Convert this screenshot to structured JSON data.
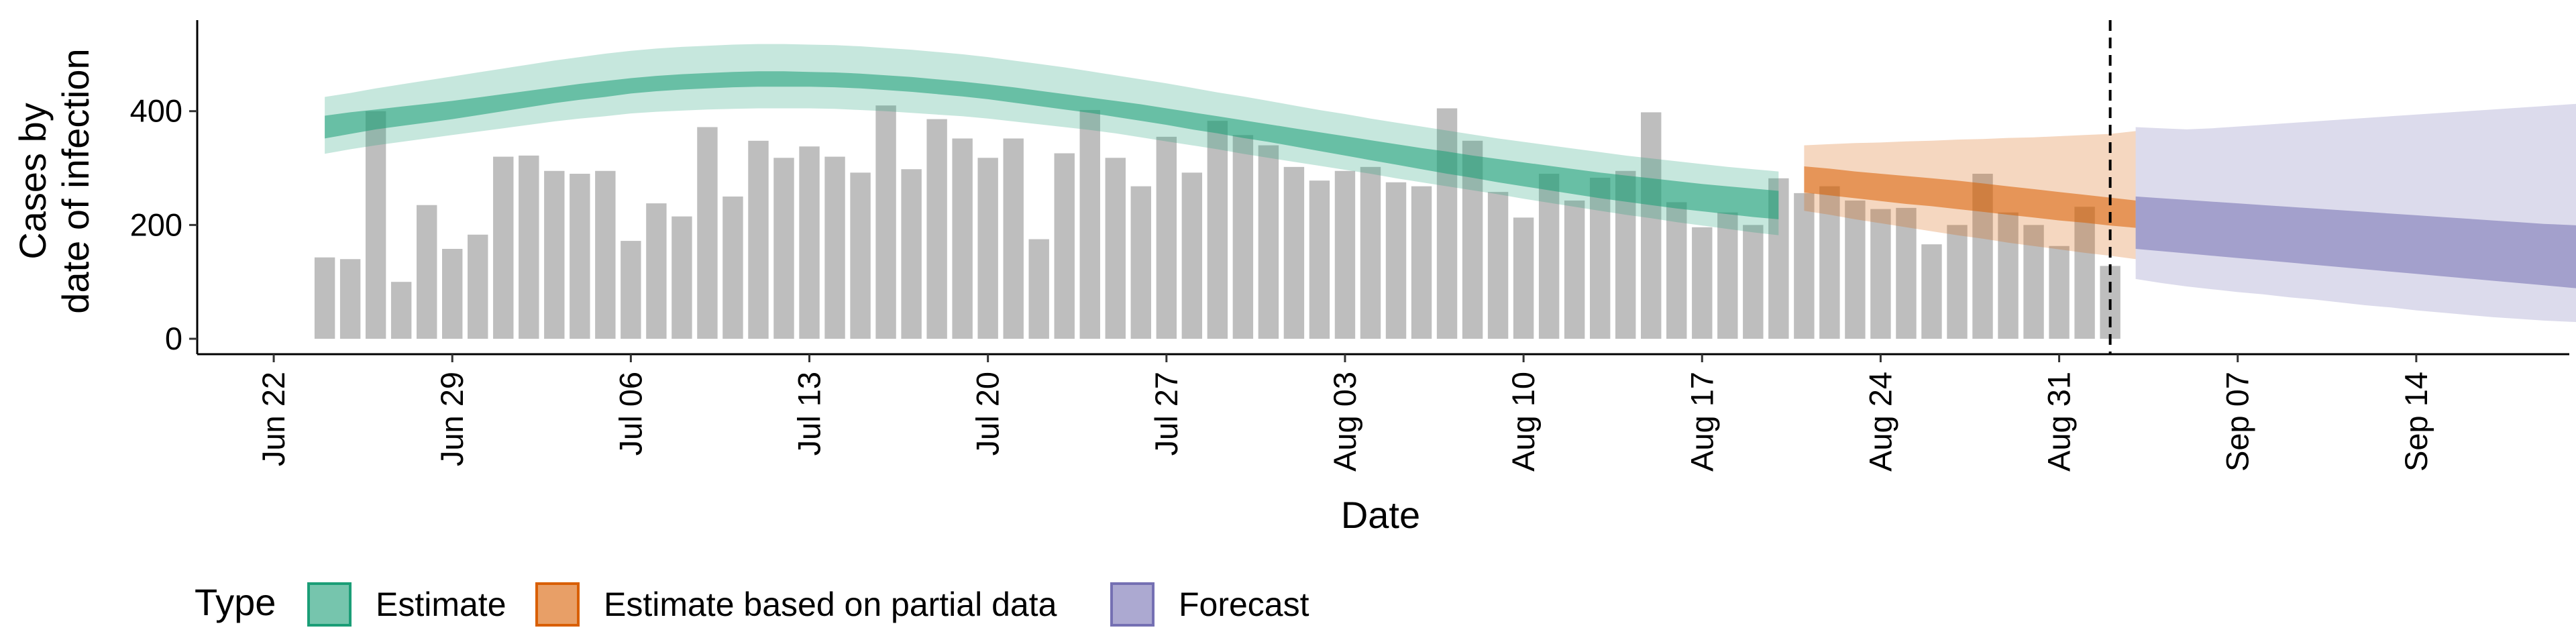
{
  "chart_data": {
    "type": "bar",
    "xlabel": "Date",
    "ylabel_line1": "Cases by",
    "ylabel_line2": "date of infection",
    "ylim": [
      0,
      560
    ],
    "y_ticks": [
      0,
      200,
      400
    ],
    "x_range": [
      "2020-06-19",
      "2020-09-20"
    ],
    "x_ticks": [
      {
        "date": "2020-06-22",
        "label": "Jun 22"
      },
      {
        "date": "2020-06-29",
        "label": "Jun 29"
      },
      {
        "date": "2020-07-06",
        "label": "Jul 06"
      },
      {
        "date": "2020-07-13",
        "label": "Jul 13"
      },
      {
        "date": "2020-07-20",
        "label": "Jul 20"
      },
      {
        "date": "2020-07-27",
        "label": "Jul 27"
      },
      {
        "date": "2020-08-03",
        "label": "Aug 03"
      },
      {
        "date": "2020-08-10",
        "label": "Aug 10"
      },
      {
        "date": "2020-08-17",
        "label": "Aug 17"
      },
      {
        "date": "2020-08-24",
        "label": "Aug 24"
      },
      {
        "date": "2020-08-31",
        "label": "Aug 31"
      },
      {
        "date": "2020-09-07",
        "label": "Sep 07"
      },
      {
        "date": "2020-09-14",
        "label": "Sep 14"
      }
    ],
    "bars": {
      "start_date": "2020-06-24",
      "color": "#bebebe",
      "values": [
        143,
        140,
        400,
        100,
        235,
        158,
        183,
        320,
        322,
        295,
        290,
        295,
        172,
        238,
        215,
        372,
        250,
        348,
        318,
        338,
        320,
        292,
        410,
        298,
        386,
        352,
        318,
        352,
        175,
        326,
        402,
        318,
        268,
        355,
        292,
        383,
        358,
        340,
        302,
        278,
        295,
        302,
        275,
        268,
        405,
        348,
        258,
        213,
        290,
        243,
        283,
        295,
        398,
        240,
        196,
        222,
        200,
        282,
        256,
        268,
        243,
        228,
        230,
        166,
        200,
        290,
        222,
        200,
        163,
        232,
        128
      ]
    },
    "vline": {
      "date": "2020-09-02",
      "style": "dashed"
    },
    "series": [
      {
        "name": "Estimate",
        "color": "#1b9e77",
        "start_date": "2020-06-24",
        "lower_90": [
          325,
          333,
          340,
          346,
          352,
          358,
          364,
          370,
          376,
          382,
          387,
          391,
          396,
          399,
          401,
          403,
          404,
          405,
          405,
          405,
          404,
          402,
          400,
          397,
          394,
          391,
          387,
          382,
          377,
          372,
          367,
          361,
          354,
          347,
          340,
          333,
          325,
          318,
          311,
          304,
          297,
          290,
          282,
          275,
          268,
          261,
          254,
          246,
          239,
          232,
          225,
          218,
          212,
          205,
          199,
          193,
          187,
          182
        ],
        "lower_50": [
          352,
          360,
          368,
          374,
          380,
          386,
          393,
          400,
          407,
          414,
          420,
          425,
          431,
          435,
          438,
          440,
          442,
          443,
          443,
          443,
          442,
          440,
          437,
          434,
          430,
          426,
          421,
          415,
          409,
          403,
          397,
          390,
          383,
          376,
          368,
          361,
          353,
          346,
          338,
          330,
          322,
          314,
          306,
          298,
          290,
          283,
          275,
          268,
          261,
          254,
          247,
          241,
          235,
          229,
          224,
          219,
          214,
          210
        ],
        "upper_50": [
          392,
          398,
          403,
          408,
          413,
          418,
          424,
          430,
          436,
          442,
          448,
          453,
          458,
          462,
          465,
          467,
          469,
          470,
          470,
          469,
          468,
          466,
          463,
          460,
          456,
          452,
          447,
          442,
          436,
          430,
          424,
          418,
          412,
          405,
          398,
          391,
          384,
          377,
          370,
          363,
          356,
          349,
          342,
          335,
          329,
          322,
          316,
          310,
          304,
          298,
          292,
          287,
          282,
          277,
          272,
          268,
          264,
          260
        ],
        "upper_90": [
          425,
          432,
          440,
          447,
          454,
          461,
          468,
          475,
          482,
          489,
          495,
          501,
          506,
          510,
          513,
          515,
          517,
          518,
          518,
          517,
          516,
          514,
          511,
          508,
          504,
          500,
          495,
          489,
          483,
          477,
          470,
          463,
          456,
          449,
          441,
          433,
          426,
          418,
          410,
          402,
          395,
          387,
          380,
          373,
          366,
          359,
          352,
          346,
          340,
          334,
          328,
          322,
          317,
          312,
          307,
          302,
          298,
          294
        ]
      },
      {
        "name": "Estimate based on partial data",
        "color": "#d95f02",
        "start_date": "2020-08-21",
        "lower_90": [
          225,
          218,
          210,
          203,
          196,
          189,
          182,
          176,
          169,
          163,
          157,
          151,
          146,
          140
        ],
        "lower_50": [
          257,
          252,
          247,
          242,
          237,
          233,
          228,
          223,
          218,
          213,
          208,
          204,
          199,
          195
        ],
        "upper_50": [
          303,
          299,
          294,
          290,
          286,
          282,
          278,
          273,
          268,
          263,
          258,
          253,
          248,
          243
        ],
        "upper_90": [
          340,
          342,
          344,
          345,
          347,
          348,
          350,
          351,
          353,
          354,
          356,
          358,
          360,
          365
        ]
      },
      {
        "name": "Forecast",
        "color": "#7570b3",
        "start_date": "2020-09-03",
        "lower_90": [
          105,
          98,
          92,
          87,
          82,
          78,
          73,
          69,
          64,
          59,
          55,
          50,
          46,
          42,
          38,
          35,
          32,
          30,
          28
        ],
        "lower_50": [
          158,
          154,
          150,
          146,
          142,
          138,
          134,
          130,
          126,
          122,
          118,
          114,
          110,
          106,
          102,
          98,
          94,
          90,
          86
        ],
        "upper_50": [
          250,
          247,
          244,
          241,
          238,
          235,
          232,
          229,
          226,
          223,
          220,
          217,
          214,
          211,
          208,
          205,
          202,
          200,
          198
        ],
        "upper_90": [
          372,
          370,
          368,
          370,
          373,
          376,
          379,
          382,
          385,
          388,
          391,
          394,
          397,
          400,
          403,
          406,
          409,
          412,
          415
        ]
      }
    ],
    "legend": {
      "title": "Type",
      "position": "bottom-left",
      "items": [
        "Estimate",
        "Estimate based on partial data",
        "Forecast"
      ]
    }
  }
}
